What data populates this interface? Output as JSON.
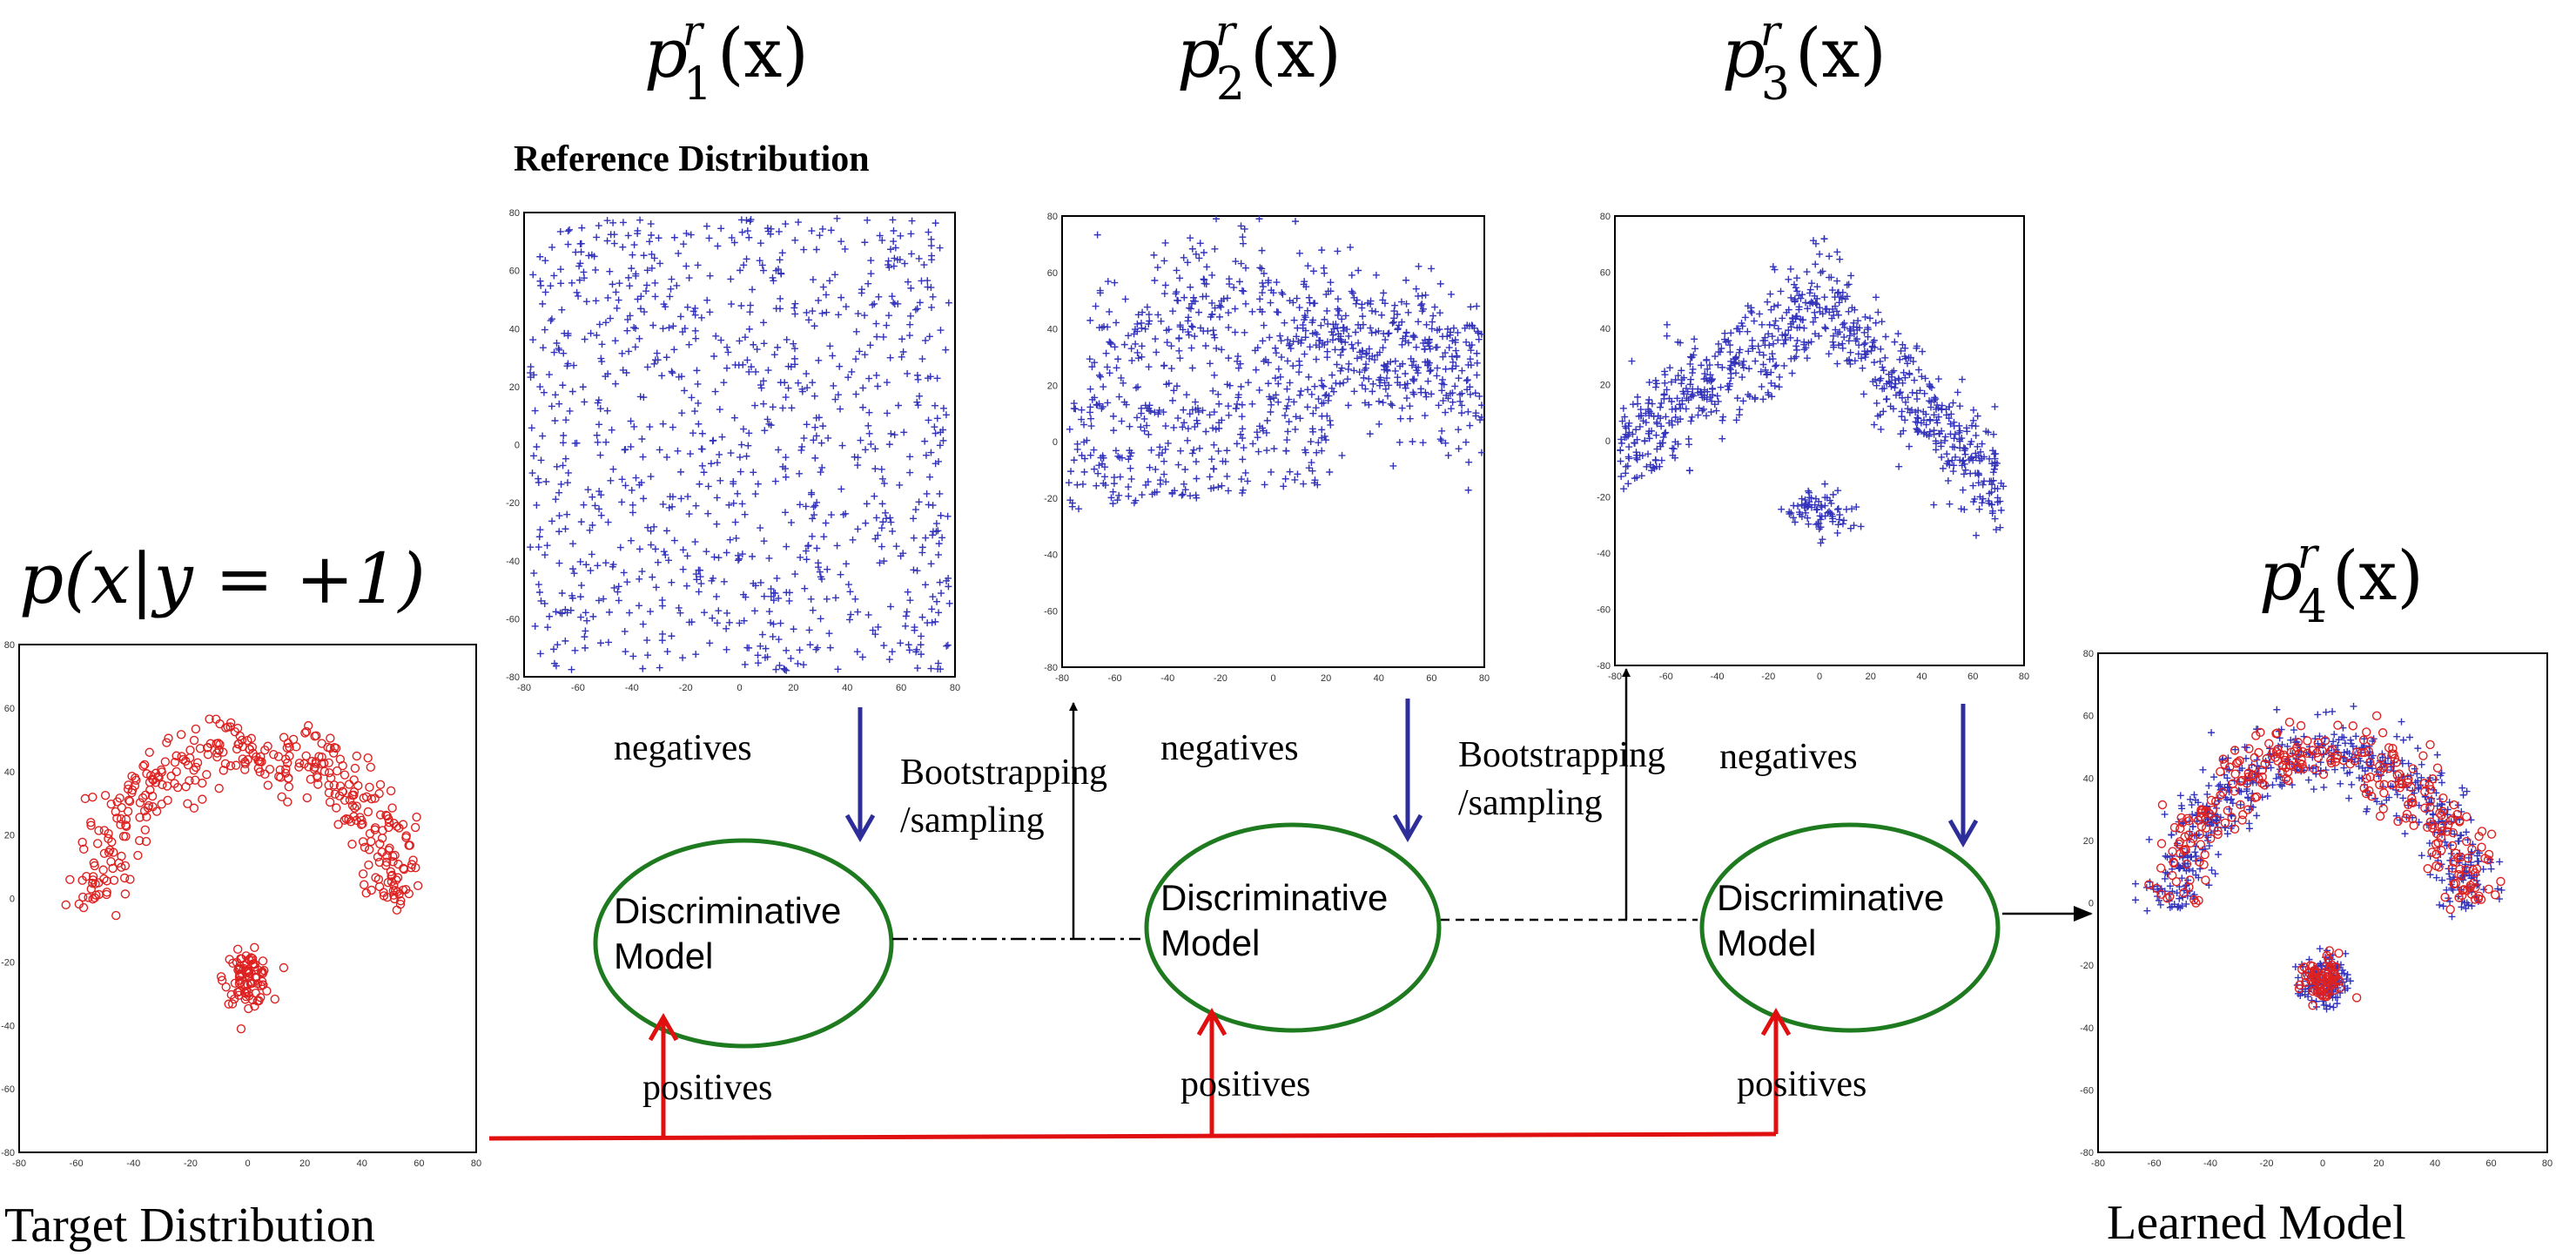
{
  "formulas": {
    "p1_base": "p",
    "p1_sup": "r",
    "p1_sub": "1",
    "p1_rest": "(x)",
    "p2_base": "p",
    "p2_sup": "r",
    "p2_sub": "2",
    "p2_rest": "(x)",
    "p3_base": "p",
    "p3_sup": "r",
    "p3_sub": "3",
    "p3_rest": "(x)",
    "p4_base": "p",
    "p4_sup": "r",
    "p4_sub": "4",
    "p4_rest": "(x)",
    "target": "p(x|y = +1)"
  },
  "labels": {
    "reference_distribution": "Reference Distribution",
    "negatives": "negatives",
    "positives": "positives",
    "bootstrapping": "Bootstrapping",
    "sampling": "/sampling",
    "discriminative": "Discriminative",
    "model": "Model",
    "target_distribution": "Target Distribution",
    "learned_model": "Learned Model"
  },
  "colors": {
    "positive": "#dd2222",
    "negative": "#3333bb",
    "ellipse": "#1e7a1e",
    "red_arrow": "#e01010",
    "blue_arrow": "#2e2e9a"
  },
  "plot_ticks": [
    "-80",
    "-60",
    "-40",
    "-20",
    "0",
    "20",
    "40",
    "60",
    "80"
  ]
}
